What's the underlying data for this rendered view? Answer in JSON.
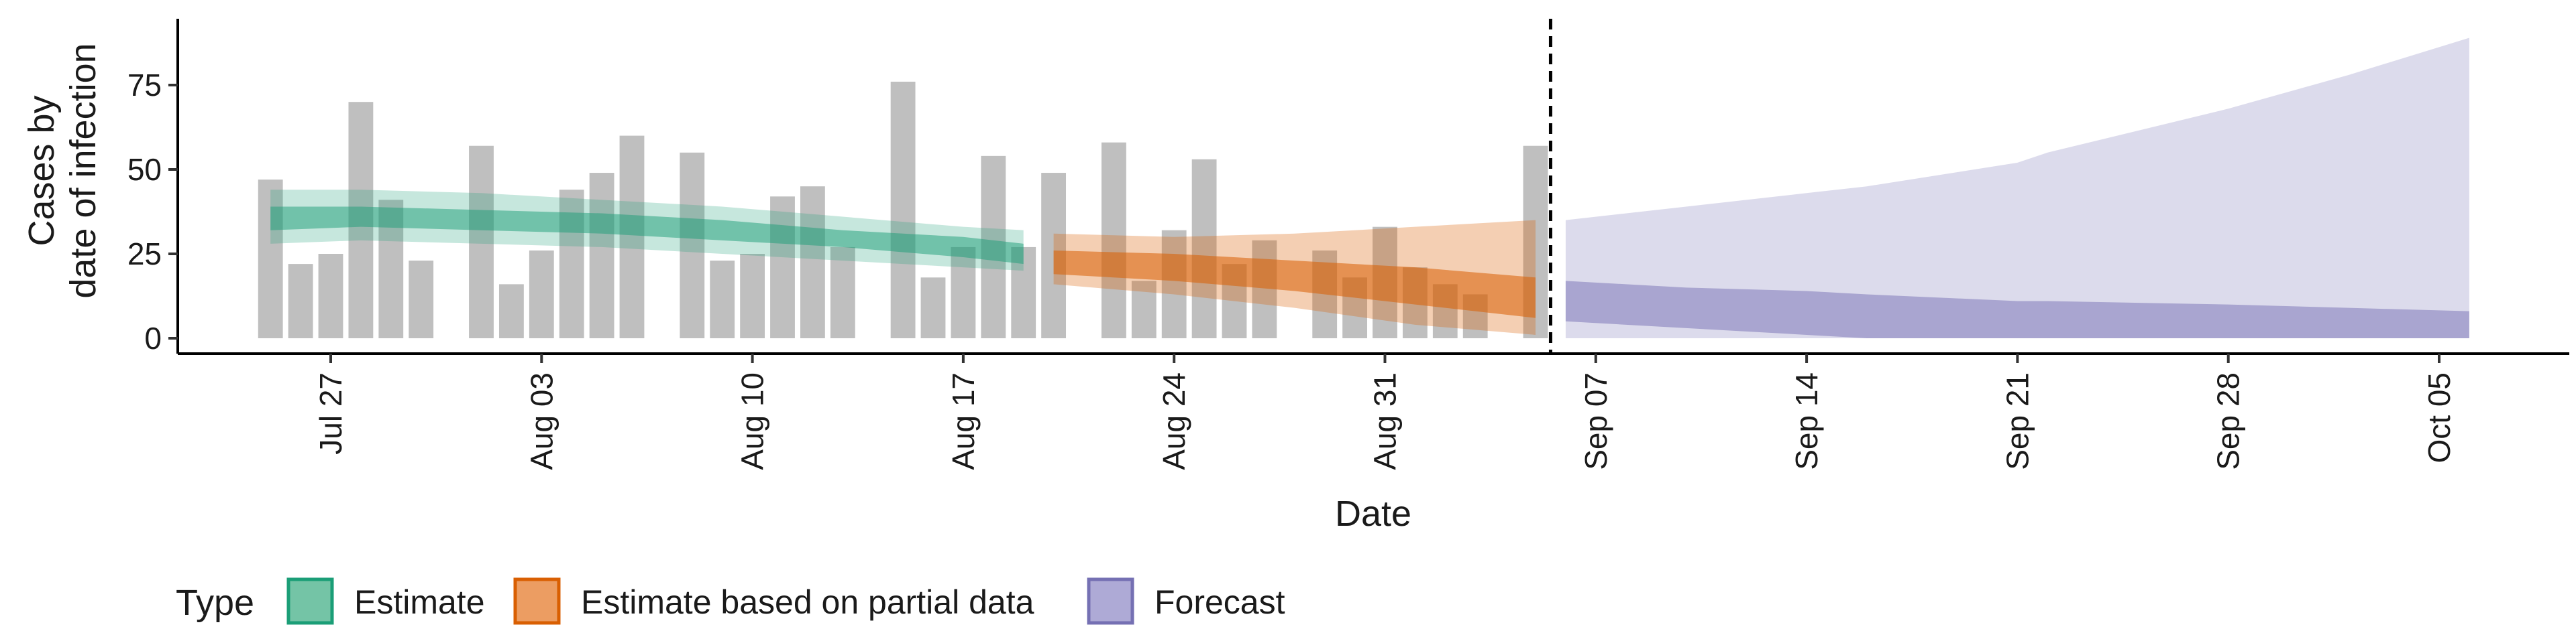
{
  "chart_data": {
    "type": "bar",
    "ylabel": [
      "Cases by",
      "date of infection"
    ],
    "xlabel": "Date",
    "ylim": [
      -5,
      95
    ],
    "yticks": [
      0,
      25,
      50,
      75
    ],
    "x_ticks": [
      {
        "date": "2020-07-27",
        "label": "Jul 27"
      },
      {
        "date": "2020-08-03",
        "label": "Aug 03"
      },
      {
        "date": "2020-08-10",
        "label": "Aug 10"
      },
      {
        "date": "2020-08-17",
        "label": "Aug 17"
      },
      {
        "date": "2020-08-24",
        "label": "Aug 24"
      },
      {
        "date": "2020-08-31",
        "label": "Aug 31"
      },
      {
        "date": "2020-09-07",
        "label": "Sep 07"
      },
      {
        "date": "2020-09-14",
        "label": "Sep 14"
      },
      {
        "date": "2020-09-21",
        "label": "Sep 21"
      },
      {
        "date": "2020-09-28",
        "label": "Sep 28"
      },
      {
        "date": "2020-10-05",
        "label": "Oct 05"
      }
    ],
    "xlim": [
      "2020-07-20",
      "2020-10-09"
    ],
    "forecast_start": "2020-09-06",
    "reported_cases": [
      {
        "date": "2020-07-25",
        "value": 47
      },
      {
        "date": "2020-07-26",
        "value": 22
      },
      {
        "date": "2020-07-27",
        "value": 25
      },
      {
        "date": "2020-07-28",
        "value": 70
      },
      {
        "date": "2020-07-29",
        "value": 41
      },
      {
        "date": "2020-07-30",
        "value": 23
      },
      {
        "date": "2020-08-01",
        "value": 57
      },
      {
        "date": "2020-08-02",
        "value": 16
      },
      {
        "date": "2020-08-03",
        "value": 26
      },
      {
        "date": "2020-08-04",
        "value": 44
      },
      {
        "date": "2020-08-05",
        "value": 49
      },
      {
        "date": "2020-08-06",
        "value": 60
      },
      {
        "date": "2020-08-08",
        "value": 55
      },
      {
        "date": "2020-08-09",
        "value": 23
      },
      {
        "date": "2020-08-10",
        "value": 25
      },
      {
        "date": "2020-08-11",
        "value": 42
      },
      {
        "date": "2020-08-12",
        "value": 45
      },
      {
        "date": "2020-08-13",
        "value": 27
      },
      {
        "date": "2020-08-15",
        "value": 76
      },
      {
        "date": "2020-08-16",
        "value": 18
      },
      {
        "date": "2020-08-17",
        "value": 27
      },
      {
        "date": "2020-08-18",
        "value": 54
      },
      {
        "date": "2020-08-19",
        "value": 27
      },
      {
        "date": "2020-08-20",
        "value": 49
      },
      {
        "date": "2020-08-22",
        "value": 58
      },
      {
        "date": "2020-08-23",
        "value": 17
      },
      {
        "date": "2020-08-24",
        "value": 32
      },
      {
        "date": "2020-08-25",
        "value": 53
      },
      {
        "date": "2020-08-26",
        "value": 22
      },
      {
        "date": "2020-08-27",
        "value": 29
      },
      {
        "date": "2020-08-29",
        "value": 26
      },
      {
        "date": "2020-08-30",
        "value": 18
      },
      {
        "date": "2020-08-31",
        "value": 33
      },
      {
        "date": "2020-09-01",
        "value": 21
      },
      {
        "date": "2020-09-02",
        "value": 16
      },
      {
        "date": "2020-09-03",
        "value": 13
      },
      {
        "date": "2020-09-05",
        "value": 57
      }
    ],
    "estimate": {
      "type": "Estimate",
      "color": "#1b9e77",
      "points": [
        {
          "date": "2020-07-25",
          "lo90": 28,
          "hi90": 44,
          "lo50": 32,
          "hi50": 39
        },
        {
          "date": "2020-07-28",
          "lo90": 29,
          "hi90": 44,
          "lo50": 33,
          "hi50": 39
        },
        {
          "date": "2020-08-01",
          "lo90": 28,
          "hi90": 43,
          "lo50": 32,
          "hi50": 38
        },
        {
          "date": "2020-08-05",
          "lo90": 27,
          "hi90": 41,
          "lo50": 31,
          "hi50": 37
        },
        {
          "date": "2020-08-09",
          "lo90": 25,
          "hi90": 39,
          "lo50": 29,
          "hi50": 35
        },
        {
          "date": "2020-08-13",
          "lo90": 23,
          "hi90": 36,
          "lo50": 27,
          "hi50": 32
        },
        {
          "date": "2020-08-17",
          "lo90": 21,
          "hi90": 33,
          "lo50": 24,
          "hi50": 30
        },
        {
          "date": "2020-08-19",
          "lo90": 20,
          "hi90": 32,
          "lo50": 22,
          "hi50": 28
        }
      ]
    },
    "partial": {
      "type": "Estimate based on partial data",
      "color": "#d95f02",
      "points": [
        {
          "date": "2020-08-20",
          "lo90": 16,
          "hi90": 31,
          "lo50": 19,
          "hi50": 26
        },
        {
          "date": "2020-08-24",
          "lo90": 13,
          "hi90": 30,
          "lo50": 17,
          "hi50": 25
        },
        {
          "date": "2020-08-28",
          "lo90": 9,
          "hi90": 31,
          "lo50": 14,
          "hi50": 23
        },
        {
          "date": "2020-09-01",
          "lo90": 4,
          "hi90": 33,
          "lo50": 10,
          "hi50": 21
        },
        {
          "date": "2020-09-05",
          "lo90": 1,
          "hi90": 35,
          "lo50": 6,
          "hi50": 18
        }
      ]
    },
    "forecast": {
      "type": "Forecast",
      "color": "#7570b3",
      "points": [
        {
          "date": "2020-09-06",
          "lo90": 0,
          "hi90": 35,
          "lo50": 5,
          "hi50": 17
        },
        {
          "date": "2020-09-10",
          "lo90": 0,
          "hi90": 39,
          "lo50": 3,
          "hi50": 15
        },
        {
          "date": "2020-09-14",
          "lo90": 0,
          "hi90": 43,
          "lo50": 1,
          "hi50": 14
        },
        {
          "date": "2020-09-16",
          "lo90": 0,
          "hi90": 45,
          "lo50": 0,
          "hi50": 13
        },
        {
          "date": "2020-09-21",
          "lo90": 0,
          "hi90": 52,
          "lo50": 0,
          "hi50": 11
        },
        {
          "date": "2020-09-22",
          "lo90": 0,
          "hi90": 55,
          "lo50": 0,
          "hi50": 11
        },
        {
          "date": "2020-09-28",
          "lo90": 0,
          "hi90": 68,
          "lo50": 0,
          "hi50": 10
        },
        {
          "date": "2020-10-02",
          "lo90": 0,
          "hi90": 78,
          "lo50": 0,
          "hi50": 9
        },
        {
          "date": "2020-10-06",
          "lo90": 0,
          "hi90": 89,
          "lo50": 0,
          "hi50": 8
        }
      ]
    },
    "legend": {
      "title": "Type",
      "position": "bottom",
      "items": [
        {
          "label": "Estimate",
          "fill": "#74c4a6",
          "stroke": "#1b9e77"
        },
        {
          "label": "Estimate based on partial data",
          "fill": "#ec9d62",
          "stroke": "#d95f02"
        },
        {
          "label": "Forecast",
          "fill": "#aeaad6",
          "stroke": "#7570b3"
        }
      ]
    },
    "bar_color": "#bfbfbf",
    "grid": false
  }
}
